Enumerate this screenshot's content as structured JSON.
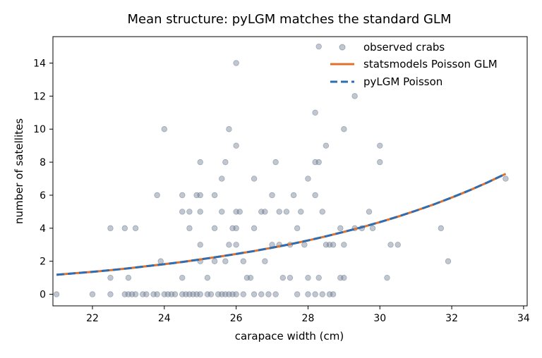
{
  "chart_data": {
    "type": "scatter",
    "title": "Mean structure: pyLGM matches the standard GLM",
    "xlabel": "carapace width (cm)",
    "ylabel": "number of satellites",
    "xlim": [
      20.9,
      34.1
    ],
    "ylim": [
      -0.7,
      15.6
    ],
    "xticks": [
      22,
      24,
      26,
      28,
      30,
      32,
      34
    ],
    "yticks": [
      0,
      2,
      4,
      6,
      8,
      10,
      12,
      14
    ],
    "grid": false,
    "legend_position": "upper-right",
    "colors": {
      "scatter": "#6b7a8f",
      "glm": "#e0702a",
      "pylgm": "#2f6db0"
    },
    "series": [
      {
        "name": "observed crabs",
        "kind": "scatter",
        "points": [
          [
            21.0,
            0
          ],
          [
            22.0,
            0
          ],
          [
            22.5,
            0
          ],
          [
            22.5,
            1
          ],
          [
            22.5,
            4
          ],
          [
            22.9,
            4
          ],
          [
            22.9,
            0
          ],
          [
            23.0,
            0
          ],
          [
            23.0,
            1
          ],
          [
            23.1,
            0
          ],
          [
            23.2,
            0
          ],
          [
            23.2,
            4
          ],
          [
            23.4,
            0
          ],
          [
            23.5,
            0
          ],
          [
            23.7,
            0
          ],
          [
            23.8,
            0
          ],
          [
            23.8,
            6
          ],
          [
            23.9,
            2
          ],
          [
            24.0,
            0
          ],
          [
            24.0,
            10
          ],
          [
            24.1,
            0
          ],
          [
            24.2,
            0
          ],
          [
            24.3,
            0
          ],
          [
            24.5,
            0
          ],
          [
            24.5,
            1
          ],
          [
            24.5,
            5
          ],
          [
            24.5,
            6
          ],
          [
            24.6,
            0
          ],
          [
            24.7,
            0
          ],
          [
            24.7,
            4
          ],
          [
            24.7,
            5
          ],
          [
            24.8,
            0
          ],
          [
            24.9,
            0
          ],
          [
            24.9,
            6
          ],
          [
            25.0,
            0
          ],
          [
            25.0,
            2
          ],
          [
            25.0,
            3
          ],
          [
            25.0,
            5
          ],
          [
            25.0,
            6
          ],
          [
            25.0,
            8
          ],
          [
            25.2,
            0
          ],
          [
            25.2,
            1
          ],
          [
            25.3,
            0
          ],
          [
            25.4,
            2
          ],
          [
            25.4,
            4
          ],
          [
            25.4,
            6
          ],
          [
            25.5,
            0
          ],
          [
            25.6,
            0
          ],
          [
            25.6,
            5
          ],
          [
            25.6,
            7
          ],
          [
            25.7,
            0
          ],
          [
            25.7,
            2
          ],
          [
            25.7,
            8
          ],
          [
            25.8,
            0
          ],
          [
            25.8,
            3
          ],
          [
            25.8,
            10
          ],
          [
            25.9,
            0
          ],
          [
            25.9,
            4
          ],
          [
            26.0,
            0
          ],
          [
            26.0,
            3
          ],
          [
            26.0,
            4
          ],
          [
            26.0,
            5
          ],
          [
            26.0,
            9
          ],
          [
            26.0,
            14
          ],
          [
            26.1,
            5
          ],
          [
            26.2,
            0
          ],
          [
            26.2,
            2
          ],
          [
            26.3,
            1
          ],
          [
            26.4,
            1
          ],
          [
            26.5,
            0
          ],
          [
            26.5,
            4
          ],
          [
            26.5,
            7
          ],
          [
            26.7,
            0
          ],
          [
            26.7,
            5
          ],
          [
            26.8,
            5
          ],
          [
            26.8,
            2
          ],
          [
            26.9,
            0
          ],
          [
            27.0,
            3
          ],
          [
            27.0,
            6
          ],
          [
            27.1,
            0
          ],
          [
            27.1,
            8
          ],
          [
            27.2,
            3
          ],
          [
            27.2,
            5
          ],
          [
            27.3,
            1
          ],
          [
            27.4,
            5
          ],
          [
            27.5,
            1
          ],
          [
            27.5,
            3
          ],
          [
            27.6,
            6
          ],
          [
            27.7,
            0
          ],
          [
            27.7,
            4
          ],
          [
            27.8,
            5
          ],
          [
            27.9,
            3
          ],
          [
            28.0,
            0
          ],
          [
            28.0,
            1
          ],
          [
            28.0,
            7
          ],
          [
            28.2,
            0
          ],
          [
            28.2,
            6
          ],
          [
            28.2,
            8
          ],
          [
            28.2,
            11
          ],
          [
            28.3,
            1
          ],
          [
            28.3,
            15
          ],
          [
            28.3,
            8
          ],
          [
            28.4,
            0
          ],
          [
            28.4,
            5
          ],
          [
            28.5,
            3
          ],
          [
            28.5,
            9
          ],
          [
            28.6,
            0
          ],
          [
            28.6,
            3
          ],
          [
            28.7,
            0
          ],
          [
            28.7,
            3
          ],
          [
            28.9,
            1
          ],
          [
            28.9,
            4
          ],
          [
            29.0,
            1
          ],
          [
            29.0,
            10
          ],
          [
            29.0,
            3
          ],
          [
            29.3,
            4
          ],
          [
            29.3,
            12
          ],
          [
            29.5,
            4
          ],
          [
            29.7,
            5
          ],
          [
            29.8,
            4
          ],
          [
            30.0,
            8
          ],
          [
            30.0,
            9
          ],
          [
            30.2,
            1
          ],
          [
            30.3,
            3
          ],
          [
            30.5,
            3
          ],
          [
            31.7,
            4
          ],
          [
            31.9,
            2
          ],
          [
            33.5,
            7
          ]
        ]
      },
      {
        "name": "statsmodels Poisson GLM",
        "kind": "line",
        "style": "solid",
        "x": [
          21.0,
          21.5,
          22.0,
          22.5,
          23.0,
          23.5,
          24.0,
          24.5,
          25.0,
          25.5,
          26.0,
          26.5,
          27.0,
          27.5,
          28.0,
          28.5,
          29.0,
          29.5,
          30.0,
          30.5,
          31.0,
          31.5,
          32.0,
          32.5,
          33.0,
          33.5
        ],
        "y": [
          1.18,
          1.27,
          1.36,
          1.46,
          1.57,
          1.7,
          1.82,
          1.96,
          2.11,
          2.27,
          2.44,
          2.62,
          2.82,
          3.03,
          3.26,
          3.51,
          3.78,
          4.06,
          4.37,
          4.7,
          5.06,
          5.44,
          5.86,
          6.3,
          6.78,
          7.29
        ]
      },
      {
        "name": "pyLGM Poisson",
        "kind": "line",
        "style": "dashed",
        "x": [
          21.0,
          21.5,
          22.0,
          22.5,
          23.0,
          23.5,
          24.0,
          24.5,
          25.0,
          25.5,
          26.0,
          26.5,
          27.0,
          27.5,
          28.0,
          28.5,
          29.0,
          29.5,
          30.0,
          30.5,
          31.0,
          31.5,
          32.0,
          32.5,
          33.0,
          33.5
        ],
        "y": [
          1.18,
          1.27,
          1.36,
          1.46,
          1.57,
          1.7,
          1.82,
          1.96,
          2.11,
          2.27,
          2.44,
          2.62,
          2.82,
          3.03,
          3.26,
          3.51,
          3.78,
          4.06,
          4.37,
          4.7,
          5.06,
          5.44,
          5.86,
          6.3,
          6.78,
          7.29
        ]
      }
    ]
  }
}
